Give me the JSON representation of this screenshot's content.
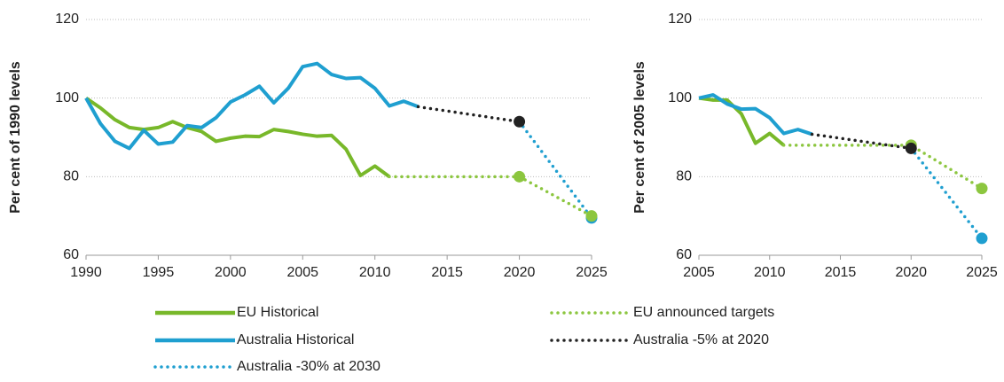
{
  "chart_data": [
    {
      "type": "line",
      "y_label": "Per cent of 1990 levels",
      "xlim": [
        1990,
        2025
      ],
      "xticks": [
        1990,
        1995,
        2000,
        2005,
        2010,
        2015,
        2020,
        2025
      ],
      "ylim": [
        60,
        120
      ],
      "yticks": [
        60,
        80,
        100,
        120
      ],
      "grid": true,
      "series": [
        {
          "name": "EU Historical",
          "color": "#78b82a",
          "style": "solid",
          "x": [
            1990,
            1991,
            1992,
            1993,
            1994,
            1995,
            1996,
            1997,
            1998,
            1999,
            2000,
            2001,
            2002,
            2003,
            2004,
            2005,
            2006,
            2007,
            2008,
            2009,
            2010,
            2011
          ],
          "values": [
            100,
            97.5,
            94.5,
            92.5,
            92,
            92.5,
            94,
            92.5,
            91.5,
            89,
            89.8,
            90.3,
            90.2,
            92,
            91.5,
            90.8,
            90.3,
            90.5,
            87,
            80.3,
            82.7,
            80
          ]
        },
        {
          "name": "Australia Historical",
          "color": "#1f9fd0",
          "style": "solid",
          "x": [
            1990,
            1991,
            1992,
            1993,
            1994,
            1995,
            1996,
            1997,
            1998,
            1999,
            2000,
            2001,
            2002,
            2003,
            2004,
            2005,
            2006,
            2007,
            2008,
            2009,
            2010,
            2011,
            2012,
            2013
          ],
          "values": [
            100,
            93.5,
            89,
            87.2,
            91.8,
            88.3,
            88.8,
            93,
            92.5,
            95,
            99,
            100.8,
            103,
            98.8,
            102.5,
            108,
            108.8,
            106,
            105,
            105.2,
            102.5,
            98,
            99.2,
            97.8
          ]
        },
        {
          "name": "Australia -30% at 2030",
          "color": "#1f9fd0",
          "style": "dotted",
          "x": [
            2020,
            2025
          ],
          "values": [
            94,
            69.5
          ],
          "markers": [
            1
          ]
        },
        {
          "name": "EU announced targets",
          "color": "#8cc63f",
          "style": "dotted",
          "x": [
            2011,
            2020,
            2025
          ],
          "values": [
            80,
            80,
            70
          ],
          "markers": [
            1,
            2
          ]
        },
        {
          "name": "Australia -5% at 2020",
          "color": "#222222",
          "style": "dotted",
          "x": [
            2013,
            2020
          ],
          "values": [
            97.8,
            94
          ],
          "markers": [
            1
          ]
        }
      ]
    },
    {
      "type": "line",
      "y_label": "Per cent of 2005 levels",
      "xlim": [
        2005,
        2025
      ],
      "xticks": [
        2005,
        2010,
        2015,
        2020,
        2025
      ],
      "ylim": [
        60,
        120
      ],
      "yticks": [
        60,
        80,
        100,
        120
      ],
      "grid": true,
      "series": [
        {
          "color": "#78b82a",
          "style": "solid",
          "x": [
            2005,
            2006,
            2007,
            2008,
            2009,
            2010,
            2011
          ],
          "values": [
            100,
            99.5,
            99.5,
            96,
            88.5,
            91,
            88
          ]
        },
        {
          "color": "#1f9fd0",
          "style": "solid",
          "x": [
            2005,
            2006,
            2007,
            2008,
            2009,
            2010,
            2011,
            2012,
            2013
          ],
          "values": [
            100,
            100.8,
            98.5,
            97.2,
            97.3,
            95,
            91,
            92,
            90.8
          ]
        },
        {
          "color": "#1f9fd0",
          "style": "dotted",
          "x": [
            2020,
            2025
          ],
          "values": [
            87.2,
            64.3
          ],
          "markers": [
            1
          ]
        },
        {
          "color": "#8cc63f",
          "style": "dotted",
          "x": [
            2011,
            2020,
            2025
          ],
          "values": [
            88,
            88,
            77
          ],
          "markers": [
            1,
            2
          ]
        },
        {
          "color": "#222222",
          "style": "dotted",
          "x": [
            2013,
            2020
          ],
          "values": [
            90.8,
            87.2
          ],
          "markers": [
            1
          ]
        }
      ]
    }
  ]
}
